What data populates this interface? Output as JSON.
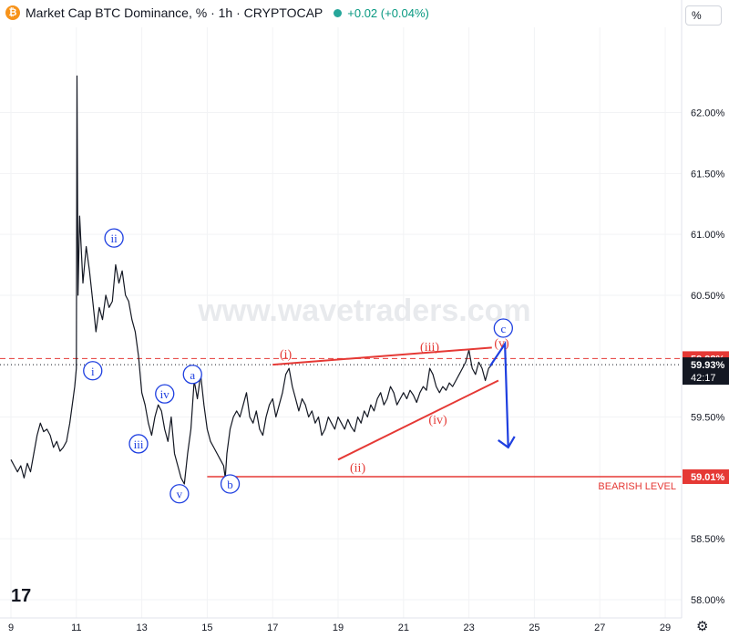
{
  "header": {
    "title": "Market Cap BTC Dominance, % · 1h · CRYPTOCAP",
    "change": "+0.02 (+0.04%)",
    "logo_symbol": "₿"
  },
  "scale_unit_button": "%",
  "watermark": "www.wavetraders.com",
  "tv_logo_text": "17",
  "settings_icon": "⚙",
  "chart_data": {
    "type": "line",
    "y_axis": {
      "position": "right",
      "range": [
        57.85,
        62.7
      ],
      "ticks": [
        {
          "value": 62.0,
          "label": "62.00%"
        },
        {
          "value": 61.5,
          "label": "61.50%"
        },
        {
          "value": 61.0,
          "label": "61.00%"
        },
        {
          "value": 60.5,
          "label": "60.50%"
        },
        {
          "value": 59.5,
          "label": "59.50%"
        },
        {
          "value": 58.5,
          "label": "58.50%"
        },
        {
          "value": 58.0,
          "label": "58.00%"
        }
      ]
    },
    "x_axis": {
      "range": [
        9,
        29.5
      ],
      "ticks": [
        {
          "value": 9,
          "label": "9"
        },
        {
          "value": 11,
          "label": "11"
        },
        {
          "value": 13,
          "label": "13"
        },
        {
          "value": 15,
          "label": "15"
        },
        {
          "value": 17,
          "label": "17"
        },
        {
          "value": 19,
          "label": "19"
        },
        {
          "value": 21,
          "label": "21"
        },
        {
          "value": 23,
          "label": "23"
        },
        {
          "value": 25,
          "label": "25"
        },
        {
          "value": 27,
          "label": "27"
        },
        {
          "value": 29,
          "label": "29"
        }
      ]
    },
    "series": [
      {
        "color": "#131722",
        "points": [
          [
            9.0,
            59.15
          ],
          [
            9.1,
            59.1
          ],
          [
            9.2,
            59.05
          ],
          [
            9.3,
            59.1
          ],
          [
            9.4,
            59.0
          ],
          [
            9.5,
            59.12
          ],
          [
            9.6,
            59.05
          ],
          [
            9.7,
            59.2
          ],
          [
            9.8,
            59.35
          ],
          [
            9.9,
            59.45
          ],
          [
            10.0,
            59.38
          ],
          [
            10.1,
            59.4
          ],
          [
            10.2,
            59.35
          ],
          [
            10.3,
            59.25
          ],
          [
            10.4,
            59.3
          ],
          [
            10.5,
            59.22
          ],
          [
            10.6,
            59.25
          ],
          [
            10.7,
            59.3
          ],
          [
            10.8,
            59.45
          ],
          [
            10.9,
            59.65
          ],
          [
            10.95,
            59.75
          ],
          [
            11.0,
            59.9
          ],
          [
            11.02,
            62.3
          ],
          [
            11.05,
            60.5
          ],
          [
            11.1,
            61.15
          ],
          [
            11.2,
            60.6
          ],
          [
            11.3,
            60.9
          ],
          [
            11.4,
            60.7
          ],
          [
            11.5,
            60.45
          ],
          [
            11.6,
            60.2
          ],
          [
            11.7,
            60.4
          ],
          [
            11.8,
            60.3
          ],
          [
            11.9,
            60.5
          ],
          [
            12.0,
            60.4
          ],
          [
            12.1,
            60.45
          ],
          [
            12.2,
            60.75
          ],
          [
            12.3,
            60.6
          ],
          [
            12.4,
            60.7
          ],
          [
            12.5,
            60.5
          ],
          [
            12.6,
            60.45
          ],
          [
            12.7,
            60.3
          ],
          [
            12.8,
            60.2
          ],
          [
            12.9,
            60.0
          ],
          [
            13.0,
            59.7
          ],
          [
            13.1,
            59.6
          ],
          [
            13.2,
            59.45
          ],
          [
            13.3,
            59.35
          ],
          [
            13.4,
            59.5
          ],
          [
            13.5,
            59.6
          ],
          [
            13.6,
            59.55
          ],
          [
            13.7,
            59.4
          ],
          [
            13.8,
            59.3
          ],
          [
            13.9,
            59.5
          ],
          [
            14.0,
            59.2
          ],
          [
            14.1,
            59.1
          ],
          [
            14.2,
            59.0
          ],
          [
            14.3,
            58.95
          ],
          [
            14.4,
            59.2
          ],
          [
            14.5,
            59.4
          ],
          [
            14.6,
            59.8
          ],
          [
            14.7,
            59.65
          ],
          [
            14.8,
            59.85
          ],
          [
            14.9,
            59.6
          ],
          [
            15.0,
            59.4
          ],
          [
            15.1,
            59.3
          ],
          [
            15.2,
            59.25
          ],
          [
            15.3,
            59.2
          ],
          [
            15.4,
            59.15
          ],
          [
            15.5,
            59.1
          ],
          [
            15.55,
            59.0
          ],
          [
            15.6,
            59.2
          ],
          [
            15.7,
            59.4
          ],
          [
            15.8,
            59.5
          ],
          [
            15.9,
            59.55
          ],
          [
            16.0,
            59.5
          ],
          [
            16.1,
            59.6
          ],
          [
            16.2,
            59.7
          ],
          [
            16.3,
            59.5
          ],
          [
            16.4,
            59.45
          ],
          [
            16.5,
            59.55
          ],
          [
            16.6,
            59.4
          ],
          [
            16.7,
            59.35
          ],
          [
            16.8,
            59.5
          ],
          [
            16.9,
            59.6
          ],
          [
            17.0,
            59.65
          ],
          [
            17.1,
            59.5
          ],
          [
            17.2,
            59.6
          ],
          [
            17.3,
            59.7
          ],
          [
            17.4,
            59.85
          ],
          [
            17.5,
            59.9
          ],
          [
            17.6,
            59.75
          ],
          [
            17.7,
            59.65
          ],
          [
            17.8,
            59.55
          ],
          [
            17.9,
            59.65
          ],
          [
            18.0,
            59.6
          ],
          [
            18.1,
            59.5
          ],
          [
            18.2,
            59.55
          ],
          [
            18.3,
            59.45
          ],
          [
            18.4,
            59.5
          ],
          [
            18.5,
            59.35
          ],
          [
            18.6,
            59.4
          ],
          [
            18.7,
            59.5
          ],
          [
            18.8,
            59.45
          ],
          [
            18.9,
            59.4
          ],
          [
            19.0,
            59.5
          ],
          [
            19.1,
            59.45
          ],
          [
            19.2,
            59.4
          ],
          [
            19.3,
            59.48
          ],
          [
            19.4,
            59.42
          ],
          [
            19.5,
            59.38
          ],
          [
            19.6,
            59.5
          ],
          [
            19.7,
            59.45
          ],
          [
            19.8,
            59.55
          ],
          [
            19.9,
            59.5
          ],
          [
            20.0,
            59.6
          ],
          [
            20.1,
            59.55
          ],
          [
            20.2,
            59.65
          ],
          [
            20.3,
            59.7
          ],
          [
            20.4,
            59.6
          ],
          [
            20.5,
            59.65
          ],
          [
            20.6,
            59.75
          ],
          [
            20.7,
            59.7
          ],
          [
            20.8,
            59.6
          ],
          [
            20.9,
            59.65
          ],
          [
            21.0,
            59.7
          ],
          [
            21.1,
            59.65
          ],
          [
            21.2,
            59.72
          ],
          [
            21.3,
            59.68
          ],
          [
            21.4,
            59.62
          ],
          [
            21.5,
            59.7
          ],
          [
            21.6,
            59.75
          ],
          [
            21.7,
            59.72
          ],
          [
            21.8,
            59.9
          ],
          [
            21.9,
            59.85
          ],
          [
            22.0,
            59.75
          ],
          [
            22.1,
            59.7
          ],
          [
            22.2,
            59.75
          ],
          [
            22.3,
            59.72
          ],
          [
            22.4,
            59.78
          ],
          [
            22.5,
            59.75
          ],
          [
            22.6,
            59.8
          ],
          [
            22.7,
            59.85
          ],
          [
            22.8,
            59.9
          ],
          [
            22.9,
            59.95
          ],
          [
            23.0,
            60.05
          ],
          [
            23.1,
            59.9
          ],
          [
            23.2,
            59.85
          ],
          [
            23.3,
            59.95
          ],
          [
            23.4,
            59.9
          ],
          [
            23.5,
            59.8
          ],
          [
            23.6,
            59.9
          ],
          [
            23.7,
            59.93
          ]
        ]
      }
    ],
    "horizontal_levels": [
      {
        "value": 59.98,
        "label": "59.98%",
        "style": "dashed",
        "color": "#e53935"
      },
      {
        "value": 59.93,
        "label": "59.93%",
        "sublabel": "42:17",
        "style": "dotted",
        "color": "#131722"
      },
      {
        "value": 59.01,
        "label": "59.01%",
        "style": "solid",
        "color": "#e53935",
        "annotation": "BEARISH LEVEL",
        "x_start": 15
      }
    ],
    "trendlines": [
      {
        "color": "#e53935",
        "from": [
          17.0,
          59.93
        ],
        "to": [
          23.7,
          60.07
        ]
      },
      {
        "color": "#e53935",
        "from": [
          19.0,
          59.15
        ],
        "to": [
          23.9,
          59.8
        ]
      }
    ],
    "arrow": {
      "color": "#1e3fe0",
      "points": [
        [
          23.65,
          59.92
        ],
        [
          24.1,
          60.1
        ],
        [
          24.2,
          59.25
        ]
      ]
    },
    "wave_labels": [
      {
        "text": "i",
        "x": 11.5,
        "y": 59.88,
        "style": "circle",
        "color": "#1e3fe0"
      },
      {
        "text": "ii",
        "x": 12.15,
        "y": 60.97,
        "style": "circle",
        "color": "#1e3fe0"
      },
      {
        "text": "iii",
        "x": 12.9,
        "y": 59.28,
        "style": "circle",
        "color": "#1e3fe0"
      },
      {
        "text": "iv",
        "x": 13.7,
        "y": 59.69,
        "style": "circle",
        "color": "#1e3fe0"
      },
      {
        "text": "v",
        "x": 14.15,
        "y": 58.87,
        "style": "circle",
        "color": "#1e3fe0"
      },
      {
        "text": "a",
        "x": 14.55,
        "y": 59.85,
        "style": "circle",
        "color": "#1e3fe0"
      },
      {
        "text": "b",
        "x": 15.7,
        "y": 58.95,
        "style": "circle",
        "color": "#1e3fe0"
      },
      {
        "text": "c",
        "x": 24.05,
        "y": 60.23,
        "style": "circle",
        "color": "#1e3fe0"
      },
      {
        "text": "(i)",
        "x": 17.4,
        "y": 60.02,
        "style": "paren",
        "color": "#e53935"
      },
      {
        "text": "(ii)",
        "x": 19.6,
        "y": 59.09,
        "style": "paren",
        "color": "#e53935"
      },
      {
        "text": "(iii)",
        "x": 21.8,
        "y": 60.08,
        "style": "paren",
        "color": "#e53935"
      },
      {
        "text": "(iv)",
        "x": 22.05,
        "y": 59.48,
        "style": "paren",
        "color": "#e53935"
      },
      {
        "text": "(v)",
        "x": 24.0,
        "y": 60.11,
        "style": "paren",
        "color": "#e53935"
      }
    ]
  }
}
